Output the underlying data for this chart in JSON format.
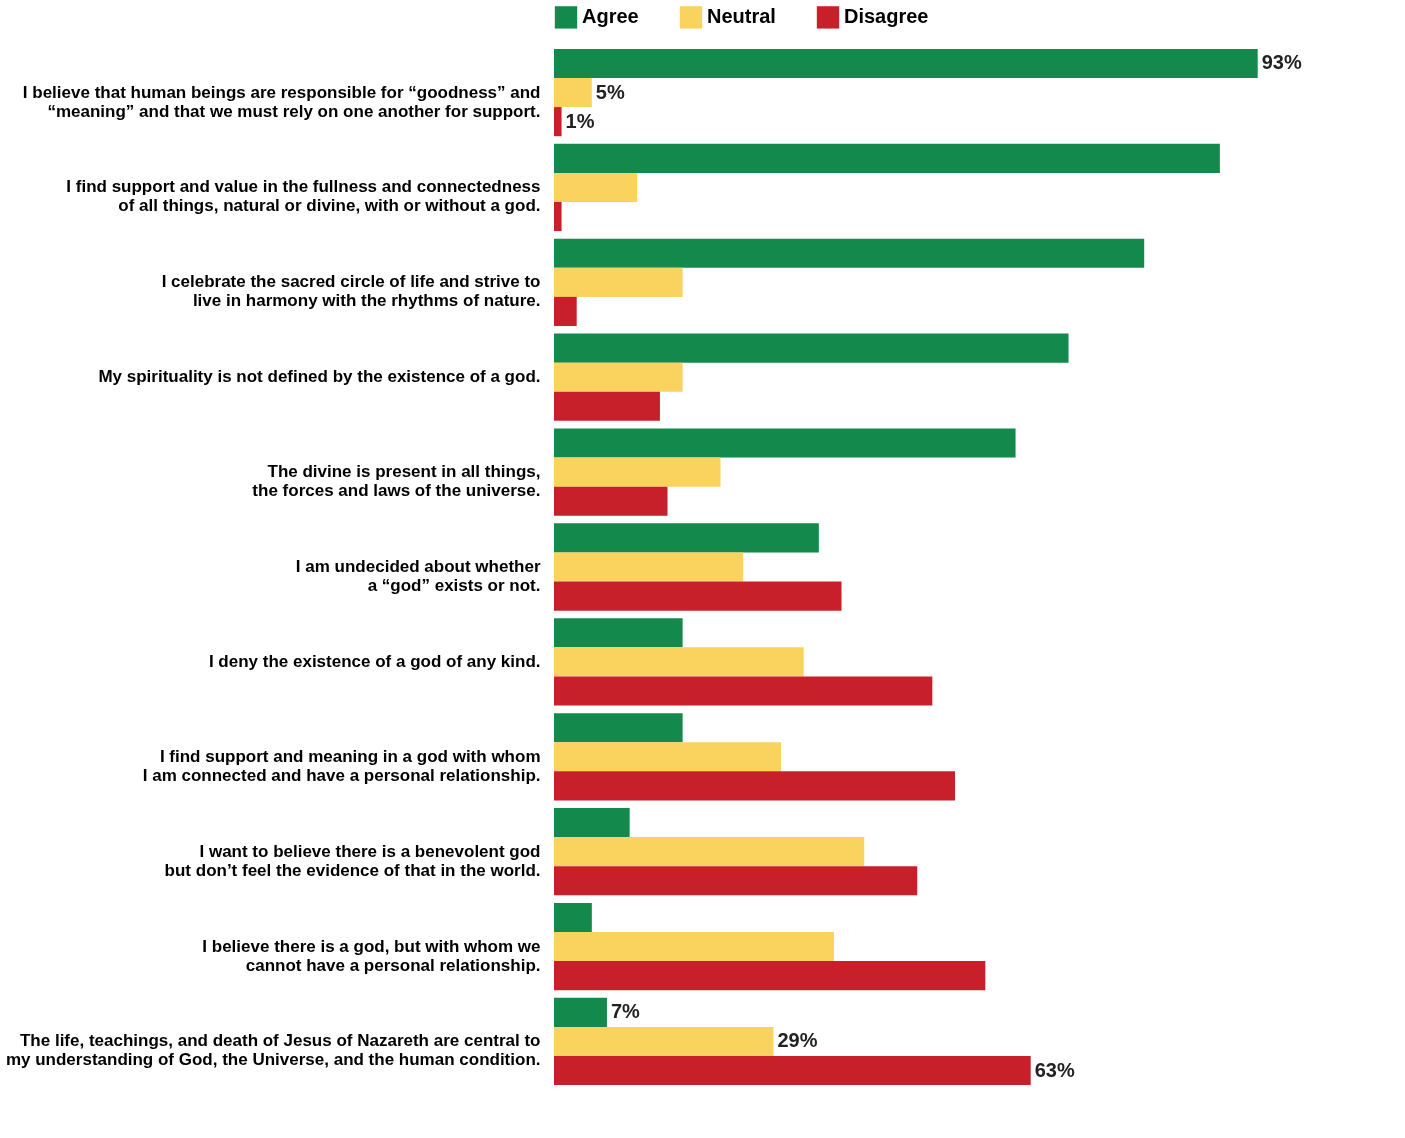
{
  "chart_data": {
    "type": "bar",
    "orientation": "horizontal",
    "legend": "top",
    "categories": [
      "I believe that human beings are responsible for “goodness” and\n“meaning” and that we must rely on one another for support.",
      "I find support and value in the fullness and connectedness\nof all things, natural or divine, with or without a god.",
      "I celebrate the sacred circle of life and strive to\nlive in harmony with the rhythms of  nature.",
      "My spirituality is not defined by the existence of a  god.",
      "The divine is present in all things,\nthe forces and laws of the universe.",
      "I am undecided about whether\na “god” exists or not.",
      "I deny the existence of a god of any kind.",
      "I find support and meaning in a god with whom\nI am connected and have a personal relationship.",
      "I want to believe there is a benevolent god\nbut don’t feel the evidence of that in the world.",
      "I believe there is a god, but with whom we\ncannot have a personal relationship.",
      "The life, teachings, and death of Jesus of Nazareth are central to\nmy understanding of God, the Universe, and the human condition."
    ],
    "series": [
      {
        "name": "Agree",
        "color": "#138a4b",
        "values": [
          93,
          88,
          78,
          68,
          61,
          35,
          17,
          17,
          10,
          5,
          7
        ],
        "value_labels": [
          "93%",
          null,
          null,
          null,
          null,
          null,
          null,
          null,
          null,
          null,
          "7%"
        ]
      },
      {
        "name": "Neutral",
        "color": "#f9d35e",
        "values": [
          5,
          11,
          17,
          17,
          22,
          25,
          33,
          30,
          41,
          37,
          29
        ],
        "value_labels": [
          "5%",
          null,
          null,
          null,
          null,
          null,
          null,
          null,
          null,
          null,
          "29%"
        ]
      },
      {
        "name": "Disagree",
        "color": "#c8202a",
        "values": [
          1,
          1,
          3,
          14,
          15,
          38,
          50,
          53,
          48,
          57,
          63
        ],
        "value_labels": [
          "1%",
          null,
          null,
          null,
          null,
          null,
          null,
          null,
          null,
          null,
          "63%"
        ]
      }
    ]
  }
}
